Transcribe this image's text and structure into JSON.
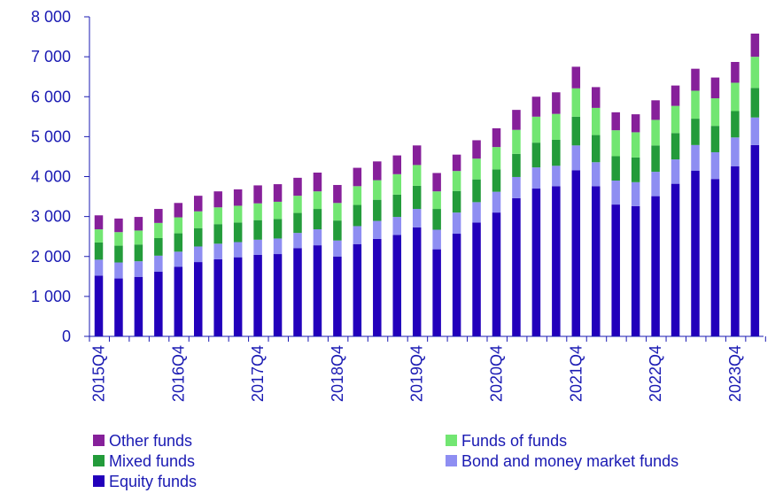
{
  "chart_data": {
    "type": "bar",
    "stacked": true,
    "title": "",
    "xlabel": "",
    "ylabel": "",
    "ylim": [
      0,
      8000
    ],
    "yticks": [
      "0",
      "1 000",
      "2 000",
      "3 000",
      "4 000",
      "5 000",
      "6 000",
      "7 000",
      "8 000"
    ],
    "grid": false,
    "legend_position": "bottom",
    "x_tick_labels": [
      "2015Q4",
      "2016Q4",
      "2017Q4",
      "2018Q4",
      "2019Q4",
      "2020Q4",
      "2021Q4",
      "2022Q4",
      "2023Q4"
    ],
    "categories": [
      "2015Q4",
      "2016Q1",
      "2016Q2",
      "2016Q3",
      "2016Q4",
      "2017Q1",
      "2017Q2",
      "2017Q3",
      "2017Q4",
      "2018Q1",
      "2018Q2",
      "2018Q3",
      "2018Q4",
      "2019Q1",
      "2019Q2",
      "2019Q3",
      "2019Q4",
      "2020Q1",
      "2020Q2",
      "2020Q3",
      "2020Q4",
      "2021Q1",
      "2021Q2",
      "2021Q3",
      "2021Q4",
      "2022Q1",
      "2022Q2",
      "2022Q3",
      "2022Q4",
      "2023Q1",
      "2023Q2",
      "2023Q3",
      "2023Q4",
      "2024Q1"
    ],
    "series": [
      {
        "name": "Equity funds",
        "color": "#2200bb",
        "values": [
          1520,
          1450,
          1490,
          1620,
          1740,
          1860,
          1930,
          1980,
          2040,
          2060,
          2210,
          2280,
          2000,
          2310,
          2440,
          2540,
          2730,
          2180,
          2570,
          2850,
          3100,
          3460,
          3700,
          3760,
          4160,
          3760,
          3300,
          3260,
          3510,
          3820,
          4150,
          3940,
          4260,
          4790
        ]
      },
      {
        "name": "Bond and money market funds",
        "color": "#8e8ef2",
        "values": [
          400,
          400,
          390,
          400,
          380,
          390,
          390,
          380,
          380,
          390,
          380,
          400,
          400,
          450,
          450,
          450,
          460,
          490,
          530,
          510,
          520,
          530,
          530,
          510,
          620,
          600,
          600,
          600,
          610,
          610,
          640,
          670,
          720,
          690
        ]
      },
      {
        "name": "Mixed funds",
        "color": "#239b3a",
        "values": [
          430,
          420,
          420,
          440,
          460,
          460,
          490,
          490,
          490,
          490,
          500,
          510,
          500,
          530,
          530,
          560,
          580,
          520,
          540,
          570,
          560,
          580,
          620,
          650,
          720,
          680,
          610,
          620,
          660,
          660,
          660,
          660,
          660,
          740
        ]
      },
      {
        "name": "Funds of funds",
        "color": "#72e672",
        "values": [
          330,
          340,
          350,
          380,
          400,
          420,
          420,
          420,
          420,
          430,
          430,
          440,
          440,
          470,
          490,
          510,
          520,
          440,
          500,
          520,
          560,
          600,
          650,
          650,
          710,
          680,
          650,
          630,
          640,
          680,
          700,
          690,
          710,
          780
        ]
      },
      {
        "name": "Other funds",
        "color": "#86209a",
        "values": [
          350,
          340,
          340,
          350,
          360,
          390,
          400,
          410,
          450,
          440,
          450,
          470,
          450,
          460,
          470,
          470,
          490,
          460,
          410,
          460,
          470,
          500,
          500,
          540,
          540,
          520,
          450,
          450,
          490,
          510,
          550,
          520,
          520,
          580
        ]
      }
    ]
  },
  "legend": {
    "items": [
      {
        "label": "Other funds",
        "color": "#86209a"
      },
      {
        "label": "Funds of funds",
        "color": "#72e672"
      },
      {
        "label": "Mixed funds",
        "color": "#239b3a"
      },
      {
        "label": "Bond and money market funds",
        "color": "#8e8ef2"
      },
      {
        "label": "Equity funds",
        "color": "#2200bb"
      }
    ]
  }
}
